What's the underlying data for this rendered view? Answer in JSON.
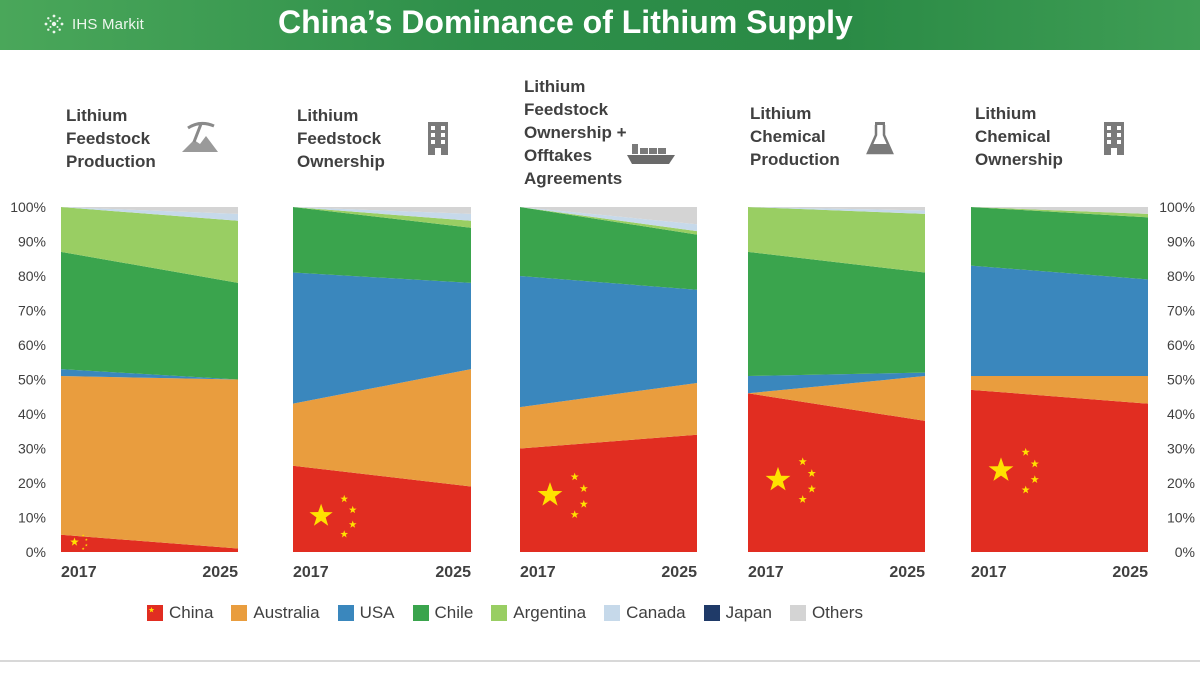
{
  "header": {
    "brand": "IHS Markit",
    "title": "China’s Dominance of Lithium Supply"
  },
  "colors": {
    "China": "#e12d21",
    "Australia": "#e99d3e",
    "USA": "#3a87bd",
    "Chile": "#3aa44d",
    "Argentina": "#99ce63",
    "Canada": "#c6d9ea",
    "Japan": "#1f3a68",
    "Others": "#d4d4d4",
    "star": "#ffe100"
  },
  "chart_data": {
    "type": "area",
    "series_order": [
      "China",
      "Australia",
      "USA",
      "Chile",
      "Argentina",
      "Canada",
      "Japan",
      "Others"
    ],
    "ylim": [
      0,
      100
    ],
    "y_ticks": [
      "0%",
      "10%",
      "20%",
      "30%",
      "40%",
      "50%",
      "60%",
      "70%",
      "80%",
      "90%",
      "100%"
    ],
    "legend_position": "bottom",
    "legend": [
      "China",
      "Australia",
      "USA",
      "Chile",
      "Argentina",
      "Canada",
      "Japan",
      "Others"
    ],
    "panels": [
      {
        "title_lines": [
          "Lithium",
          "Feedstock",
          "Production"
        ],
        "icon": "mining-icon",
        "x": [
          "2017",
          "2025"
        ],
        "series": [
          {
            "name": "China",
            "values": [
              5,
              1
            ]
          },
          {
            "name": "Australia",
            "values": [
              46,
              49
            ]
          },
          {
            "name": "USA",
            "values": [
              2,
              0
            ]
          },
          {
            "name": "Chile",
            "values": [
              34,
              28
            ]
          },
          {
            "name": "Argentina",
            "values": [
              13,
              18
            ]
          },
          {
            "name": "Canada",
            "values": [
              0,
              2
            ]
          },
          {
            "name": "Japan",
            "values": [
              0,
              0
            ]
          },
          {
            "name": "Others",
            "values": [
              0,
              2
            ]
          }
        ]
      },
      {
        "title_lines": [
          "Lithium",
          "Feedstock",
          "Ownership"
        ],
        "icon": "building-icon",
        "x": [
          "2017",
          "2025"
        ],
        "series": [
          {
            "name": "China",
            "values": [
              25,
              19
            ]
          },
          {
            "name": "Australia",
            "values": [
              18,
              34
            ]
          },
          {
            "name": "USA",
            "values": [
              38,
              25
            ]
          },
          {
            "name": "Chile",
            "values": [
              19,
              16
            ]
          },
          {
            "name": "Argentina",
            "values": [
              0,
              2
            ]
          },
          {
            "name": "Canada",
            "values": [
              0,
              2
            ]
          },
          {
            "name": "Japan",
            "values": [
              0,
              0
            ]
          },
          {
            "name": "Others",
            "values": [
              0,
              2
            ]
          }
        ]
      },
      {
        "title_lines": [
          "Lithium",
          "Feedstock",
          "Ownership +",
          "Offtakes",
          "Agreements"
        ],
        "icon": "ship-icon",
        "x": [
          "2017",
          "2025"
        ],
        "series": [
          {
            "name": "China",
            "values": [
              30,
              34
            ]
          },
          {
            "name": "Australia",
            "values": [
              12,
              15
            ]
          },
          {
            "name": "USA",
            "values": [
              38,
              27
            ]
          },
          {
            "name": "Chile",
            "values": [
              20,
              16
            ]
          },
          {
            "name": "Argentina",
            "values": [
              0,
              1
            ]
          },
          {
            "name": "Canada",
            "values": [
              0,
              2
            ]
          },
          {
            "name": "Japan",
            "values": [
              0,
              0
            ]
          },
          {
            "name": "Others",
            "values": [
              0,
              5
            ]
          }
        ]
      },
      {
        "title_lines": [
          "Lithium",
          "Chemical",
          "Production"
        ],
        "icon": "flask-icon",
        "x": [
          "2017",
          "2025"
        ],
        "series": [
          {
            "name": "China",
            "values": [
              46,
              38
            ]
          },
          {
            "name": "Australia",
            "values": [
              0,
              13
            ]
          },
          {
            "name": "USA",
            "values": [
              5,
              1
            ]
          },
          {
            "name": "Chile",
            "values": [
              36,
              29
            ]
          },
          {
            "name": "Argentina",
            "values": [
              13,
              17
            ]
          },
          {
            "name": "Canada",
            "values": [
              0,
              1
            ]
          },
          {
            "name": "Japan",
            "values": [
              0,
              0
            ]
          },
          {
            "name": "Others",
            "values": [
              0,
              1
            ]
          }
        ]
      },
      {
        "title_lines": [
          "Lithium",
          "Chemical",
          "Ownership"
        ],
        "icon": "building-icon",
        "x": [
          "2017",
          "2025"
        ],
        "series": [
          {
            "name": "China",
            "values": [
              47,
              43
            ]
          },
          {
            "name": "Australia",
            "values": [
              4,
              8
            ]
          },
          {
            "name": "USA",
            "values": [
              32,
              28
            ]
          },
          {
            "name": "Chile",
            "values": [
              17,
              18
            ]
          },
          {
            "name": "Argentina",
            "values": [
              0,
              1
            ]
          },
          {
            "name": "Canada",
            "values": [
              0,
              0
            ]
          },
          {
            "name": "Japan",
            "values": [
              0,
              0
            ]
          },
          {
            "name": "Others",
            "values": [
              0,
              2
            ]
          }
        ]
      }
    ]
  }
}
